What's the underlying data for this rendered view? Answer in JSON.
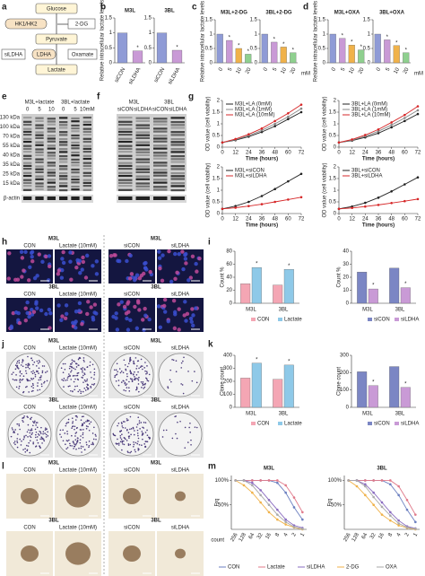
{
  "figure": {
    "panel_letters": [
      "a",
      "b",
      "c",
      "d",
      "e",
      "f",
      "g",
      "h",
      "i",
      "j",
      "k",
      "l",
      "m"
    ],
    "significance_symbol": "*",
    "pathway": {
      "glucose": "Glucose",
      "hk": "HK1/HK2",
      "inhibitor": "2-DG",
      "pyruvate": "Pyruvate",
      "sirna": "siLDHA",
      "ldha": "LDHA",
      "oxamate": "Oxamate",
      "lactate": "Lactate"
    },
    "blot_e": {
      "groups": [
        "M3L+lactate",
        "3BL+lactate"
      ],
      "lanes": [
        "0",
        "5",
        "10",
        "0",
        "5",
        "10mM"
      ],
      "markers": [
        "130 kDa",
        "100 kDa",
        "70 kDa",
        "55 kDa",
        "40 kDa",
        "35 kDa",
        "25 kDa",
        "15 kDa"
      ],
      "loading": "β-actin"
    },
    "blot_f": {
      "groups": [
        "M3L",
        "3BL"
      ],
      "lanes": [
        "siCON",
        "siLDHA",
        "siCON",
        "siLDHA"
      ]
    },
    "h": {
      "rows": [
        {
          "titles": [
            "M3L",
            "M3L"
          ],
          "labels": [
            "CON",
            "Lactate (10mM)",
            "siCON",
            "siLDHA"
          ]
        },
        {
          "titles": [
            "3BL",
            "3BL"
          ],
          "labels": [
            "CON",
            "Lactate (10mM)",
            "siCON",
            "siLDHA"
          ]
        }
      ]
    },
    "j": {
      "rows": [
        {
          "titles": [
            "M3L",
            "M3L"
          ],
          "labels": [
            "CON",
            "Lactate (10mM)",
            "siCON",
            "siLDHA"
          ]
        },
        {
          "titles": [
            "3BL",
            "3BL"
          ],
          "labels": [
            "CON",
            "Lactate (10mM)",
            "siCON",
            "siLDHA"
          ]
        }
      ]
    },
    "l": {
      "rows": [
        {
          "titles": [
            "M3L",
            "M3L"
          ],
          "labels": [
            "CON",
            "Lactate (10mM)",
            "siCON",
            "siLDHA"
          ]
        },
        {
          "titles": [
            "3BL",
            "3BL"
          ],
          "labels": [
            "CON",
            "Lactate (10mM)",
            "siCON",
            "siLDHA"
          ]
        }
      ]
    }
  },
  "chart_data": [
    {
      "type": "bar",
      "title": "M3L",
      "ylabel": "Relative intracellular lactate levels",
      "categories": [
        "siCON",
        "siLDHA"
      ],
      "values": [
        1.0,
        0.4
      ],
      "colors": [
        "#8f9bd6",
        "#c99ad6"
      ],
      "significant": [
        false,
        true
      ],
      "ylim": [
        0,
        1.5
      ],
      "yticks": [
        0,
        0.5,
        1,
        1.5
      ]
    },
    {
      "type": "bar",
      "title": "3BL",
      "categories": [
        "siCON",
        "siLDHA"
      ],
      "values": [
        1.0,
        0.42
      ],
      "colors": [
        "#8f9bd6",
        "#c99ad6"
      ],
      "significant": [
        false,
        true
      ],
      "ylim": [
        0,
        1.5
      ],
      "yticks": [
        0,
        0.5,
        1,
        1.5
      ]
    },
    {
      "type": "bar",
      "title": "M3L+2-DG",
      "ylabel": "Relative intracellular lactate levels",
      "categories": [
        "0",
        "5",
        "10",
        "20"
      ],
      "values": [
        1.0,
        0.78,
        0.5,
        0.3
      ],
      "colors": [
        "#8f9bd6",
        "#c99ad6",
        "#f0b24a",
        "#8fd08f"
      ],
      "significant": [
        false,
        true,
        true,
        true
      ],
      "ylim": [
        0,
        1.5
      ],
      "yticks": [
        0,
        0.5,
        1,
        1.5
      ]
    },
    {
      "type": "bar",
      "title": "3BL+2-DG",
      "xlabel": "mM",
      "categories": [
        "0",
        "5",
        "10",
        "20"
      ],
      "values": [
        1.0,
        0.72,
        0.55,
        0.35
      ],
      "colors": [
        "#8f9bd6",
        "#c99ad6",
        "#f0b24a",
        "#8fd08f"
      ],
      "significant": [
        false,
        true,
        true,
        true
      ],
      "ylim": [
        0,
        1.5
      ],
      "yticks": [
        0,
        0.5,
        1,
        1.5
      ]
    },
    {
      "type": "bar",
      "title": "M3L+OXA",
      "ylabel": "Relative intracellular lactate levels",
      "categories": [
        "0",
        "5",
        "10",
        "20"
      ],
      "values": [
        1.0,
        0.85,
        0.62,
        0.45
      ],
      "colors": [
        "#8f9bd6",
        "#c99ad6",
        "#f0b24a",
        "#8fd08f"
      ],
      "significant": [
        false,
        true,
        true,
        true
      ],
      "ylim": [
        0,
        1.5
      ],
      "yticks": [
        0,
        0.5,
        1,
        1.5
      ]
    },
    {
      "type": "bar",
      "title": "3BL+OXA",
      "xlabel": "mM",
      "categories": [
        "0",
        "5",
        "10",
        "20"
      ],
      "values": [
        1.0,
        0.8,
        0.6,
        0.35
      ],
      "colors": [
        "#8f9bd6",
        "#c99ad6",
        "#f0b24a",
        "#8fd08f"
      ],
      "significant": [
        false,
        true,
        true,
        true
      ],
      "ylim": [
        0,
        1.5
      ],
      "yticks": [
        0,
        0.5,
        1,
        1.5
      ]
    },
    {
      "type": "line",
      "ylabel": "OD value (cell viability)",
      "xlabel": "Time (hours)",
      "x": [
        0,
        12,
        24,
        36,
        48,
        60,
        72
      ],
      "xlim": [
        0,
        72
      ],
      "xticks": [
        0,
        12,
        24,
        36,
        48,
        60,
        72
      ],
      "ylim": [
        0,
        2
      ],
      "yticks": [
        0,
        0.5,
        1,
        1.5,
        2
      ],
      "series": [
        {
          "name": "M3L+LA (0mM)",
          "color": "#222222",
          "values": [
            0.2,
            0.3,
            0.45,
            0.65,
            0.9,
            1.2,
            1.5
          ]
        },
        {
          "name": "M3L+LA (1mM)",
          "color": "#888888",
          "values": [
            0.2,
            0.32,
            0.5,
            0.72,
            1.0,
            1.3,
            1.65
          ]
        },
        {
          "name": "M3L+LA (10mM)",
          "color": "#d62728",
          "values": [
            0.2,
            0.35,
            0.55,
            0.8,
            1.12,
            1.45,
            1.82
          ]
        }
      ]
    },
    {
      "type": "line",
      "ylabel": "OD value (cell viability)",
      "xlabel": "Time (hours)",
      "x": [
        0,
        12,
        24,
        36,
        48,
        60,
        72
      ],
      "xlim": [
        0,
        72
      ],
      "xticks": [
        0,
        12,
        24,
        36,
        48,
        60,
        72
      ],
      "ylim": [
        0,
        2
      ],
      "yticks": [
        0,
        0.5,
        1,
        1.5,
        2
      ],
      "series": [
        {
          "name": "3BL+LA (0mM)",
          "color": "#222222",
          "values": [
            0.2,
            0.28,
            0.42,
            0.6,
            0.85,
            1.12,
            1.42
          ]
        },
        {
          "name": "3BL+LA (1mM)",
          "color": "#888888",
          "values": [
            0.2,
            0.3,
            0.47,
            0.68,
            0.95,
            1.25,
            1.58
          ]
        },
        {
          "name": "3BL+LA (10mM)",
          "color": "#d62728",
          "values": [
            0.2,
            0.33,
            0.52,
            0.76,
            1.06,
            1.38,
            1.75
          ]
        }
      ]
    },
    {
      "type": "line",
      "ylabel": "OD value (cell viability)",
      "xlabel": "Time (hours)",
      "x": [
        0,
        12,
        24,
        36,
        48,
        60,
        72
      ],
      "xlim": [
        0,
        72
      ],
      "xticks": [
        0,
        12,
        24,
        36,
        48,
        60,
        72
      ],
      "ylim": [
        0,
        2
      ],
      "yticks": [
        0,
        0.5,
        1,
        1.5,
        2
      ],
      "series": [
        {
          "name": "M3L+siCON",
          "color": "#222222",
          "values": [
            0.2,
            0.32,
            0.5,
            0.75,
            1.05,
            1.38,
            1.7
          ]
        },
        {
          "name": "M3L+siLDHA",
          "color": "#d62728",
          "values": [
            0.2,
            0.25,
            0.32,
            0.4,
            0.5,
            0.6,
            0.7
          ]
        }
      ]
    },
    {
      "type": "line",
      "ylabel": "OD value (cell viability)",
      "xlabel": "Time (hours)",
      "x": [
        0,
        12,
        24,
        36,
        48,
        60,
        72
      ],
      "xlim": [
        0,
        72
      ],
      "xticks": [
        0,
        12,
        24,
        36,
        48,
        60,
        72
      ],
      "ylim": [
        0,
        2
      ],
      "yticks": [
        0,
        0.5,
        1,
        1.5,
        2
      ],
      "series": [
        {
          "name": "3BL+siCON",
          "color": "#222222",
          "values": [
            0.2,
            0.3,
            0.46,
            0.68,
            0.95,
            1.25,
            1.55
          ]
        },
        {
          "name": "3BL+siLDHA",
          "color": "#d62728",
          "values": [
            0.2,
            0.24,
            0.3,
            0.37,
            0.45,
            0.53,
            0.62
          ]
        }
      ]
    },
    {
      "type": "bar",
      "ylabel": "Count %",
      "categories": [
        "M3L",
        "3BL"
      ],
      "ylim": [
        0,
        80
      ],
      "yticks": [
        0,
        20,
        40,
        60,
        80
      ],
      "series": [
        {
          "name": "CON",
          "color": "#f4a6b4",
          "values": [
            30,
            28
          ],
          "significant": [
            false,
            false
          ]
        },
        {
          "name": "Lactate",
          "color": "#8ec9e8",
          "values": [
            55,
            52
          ],
          "significant": [
            true,
            true
          ]
        }
      ]
    },
    {
      "type": "bar",
      "ylabel": "Count %",
      "categories": [
        "M3L",
        "3BL"
      ],
      "ylim": [
        0,
        40
      ],
      "yticks": [
        0,
        10,
        20,
        30,
        40
      ],
      "series": [
        {
          "name": "siCON",
          "color": "#7b86c4",
          "values": [
            24,
            27
          ],
          "significant": [
            false,
            false
          ]
        },
        {
          "name": "siLDHA",
          "color": "#c99ad6",
          "values": [
            11,
            12
          ],
          "significant": [
            true,
            true
          ]
        }
      ]
    },
    {
      "type": "bar",
      "ylabel": "Clone count",
      "categories": [
        "M3L",
        "3BL"
      ],
      "ylim": [
        0,
        400
      ],
      "yticks": [
        0,
        100,
        200,
        300,
        400
      ],
      "series": [
        {
          "name": "CON",
          "color": "#f4a6b4",
          "values": [
            225,
            215
          ],
          "significant": [
            false,
            false
          ]
        },
        {
          "name": "Lactate",
          "color": "#8ec9e8",
          "values": [
            340,
            325
          ],
          "significant": [
            true,
            true
          ]
        }
      ]
    },
    {
      "type": "bar",
      "ylabel": "Clone count",
      "categories": [
        "M3L",
        "3BL"
      ],
      "ylim": [
        0,
        300
      ],
      "yticks": [
        0,
        100,
        200,
        300
      ],
      "series": [
        {
          "name": "siCON",
          "color": "#7b86c4",
          "values": [
            205,
            235
          ],
          "significant": [
            false,
            false
          ]
        },
        {
          "name": "siLDHA",
          "color": "#c99ad6",
          "values": [
            125,
            115
          ],
          "significant": [
            true,
            true
          ]
        }
      ]
    },
    {
      "type": "line",
      "title": "M3L",
      "ylabel": "Frq",
      "xlabel": "count",
      "categories": [
        "256",
        "128",
        "64",
        "32",
        "16",
        "8",
        "4",
        "2",
        "1"
      ],
      "ylim": [
        0,
        110
      ],
      "yticks": [
        {
          "value": 50,
          "label": "50%"
        },
        {
          "value": 100,
          "label": "100%"
        }
      ],
      "legend": "bottom",
      "series": [
        {
          "name": "CON",
          "color": "#6b7fc0",
          "values": [
            100,
            100,
            100,
            100,
            100,
            95,
            75,
            45,
            20
          ]
        },
        {
          "name": "Lactate",
          "color": "#e07a8a",
          "values": [
            100,
            100,
            100,
            100,
            100,
            100,
            90,
            65,
            35
          ]
        },
        {
          "name": "siLDHA",
          "color": "#8a6cc0",
          "values": [
            100,
            100,
            95,
            80,
            60,
            40,
            20,
            8,
            3
          ]
        },
        {
          "name": "2-DG",
          "color": "#f0b24a",
          "values": [
            100,
            90,
            75,
            55,
            35,
            20,
            10,
            4,
            0
          ]
        },
        {
          "name": "OXA",
          "color": "#aaaaaa",
          "values": [
            100,
            100,
            90,
            70,
            50,
            30,
            15,
            5,
            1
          ]
        }
      ]
    },
    {
      "type": "line",
      "title": "3BL",
      "ylabel": "Frq",
      "categories": [
        "256",
        "128",
        "64",
        "32",
        "16",
        "8",
        "4",
        "2",
        "1"
      ],
      "ylim": [
        0,
        110
      ],
      "yticks": [
        {
          "value": 50,
          "label": "50%"
        },
        {
          "value": 100,
          "label": "100%"
        }
      ],
      "series": [
        {
          "color": "#6b7fc0",
          "values": [
            100,
            100,
            100,
            100,
            100,
            92,
            70,
            40,
            15
          ]
        },
        {
          "color": "#e07a8a",
          "values": [
            100,
            100,
            100,
            100,
            100,
            100,
            88,
            60,
            30
          ]
        },
        {
          "color": "#8a6cc0",
          "values": [
            100,
            100,
            92,
            75,
            55,
            35,
            18,
            6,
            2
          ]
        },
        {
          "color": "#f0b24a",
          "values": [
            100,
            88,
            70,
            50,
            30,
            18,
            8,
            3,
            0
          ]
        },
        {
          "color": "#aaaaaa",
          "values": [
            100,
            100,
            88,
            66,
            46,
            28,
            12,
            4,
            1
          ]
        }
      ]
    }
  ]
}
